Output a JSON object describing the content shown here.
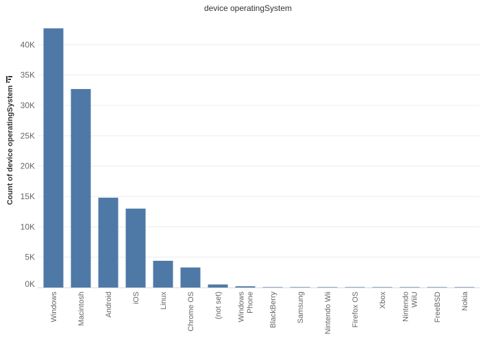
{
  "chart_data": {
    "type": "bar",
    "title": "device operatingSystem",
    "ylabel": "Count of device operatingSystem",
    "xlabel": "",
    "categories": [
      [
        "Windows"
      ],
      [
        "Macintosh"
      ],
      [
        "Android"
      ],
      [
        "iOS"
      ],
      [
        "Linux"
      ],
      [
        "Chrome OS"
      ],
      [
        "(not set)"
      ],
      [
        "Windows",
        "Phone"
      ],
      [
        "BlackBerry"
      ],
      [
        "Samsung"
      ],
      [
        "Nintendo Wii"
      ],
      [
        "Firefox OS"
      ],
      [
        "Xbox"
      ],
      [
        "Nintendo",
        "WiiU"
      ],
      [
        "FreeBSD"
      ],
      [
        "Nokia"
      ]
    ],
    "values": [
      42700,
      32700,
      14800,
      13000,
      4400,
      3300,
      500,
      200,
      20,
      15,
      10,
      8,
      6,
      5,
      4,
      3
    ],
    "yticks": [
      0,
      5000,
      10000,
      15000,
      20000,
      25000,
      30000,
      35000,
      40000
    ],
    "ytick_labels": [
      "0K",
      "5K",
      "10K",
      "15K",
      "20K",
      "25K",
      "30K",
      "35K",
      "40K"
    ],
    "ylim": [
      0,
      45000
    ],
    "grid": true,
    "bar_color": "#4e79a7",
    "icons": {
      "sort": "sort-descending-icon"
    }
  }
}
